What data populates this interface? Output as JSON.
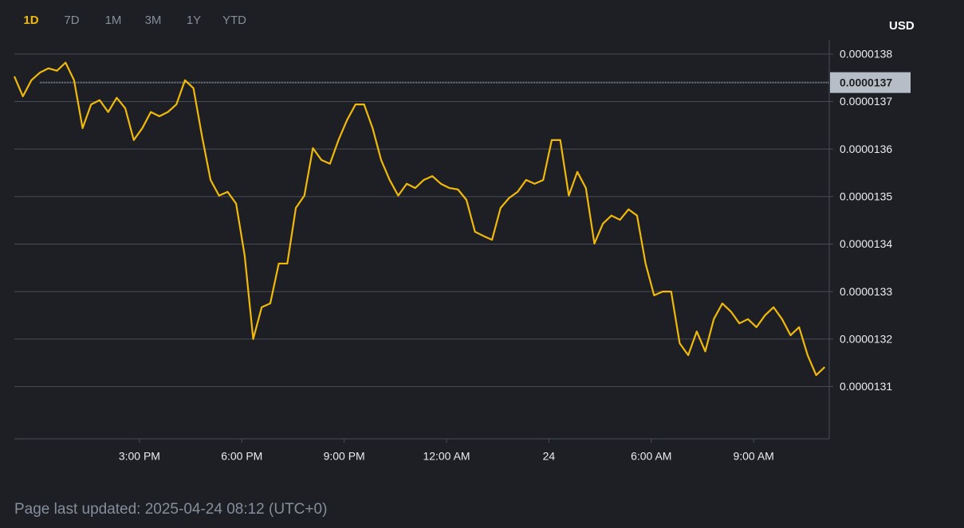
{
  "tabs": [
    "1D",
    "7D",
    "1M",
    "3M",
    "1Y",
    "YTD"
  ],
  "active_tab": "1D",
  "footer": "Page last updated: 2025-04-24 08:12 (UTC+0)",
  "chart_data": {
    "type": "line",
    "y_axis_label": "USD",
    "color": "#f0b90b",
    "grid": true,
    "x": [
      "11:20",
      "11:35",
      "11:50",
      "12:05",
      "12:20",
      "12:35",
      "12:50",
      "13:05",
      "13:20",
      "13:35",
      "13:50",
      "14:05",
      "14:20",
      "14:35",
      "14:50",
      "15:05",
      "15:20",
      "15:35",
      "15:50",
      "16:05",
      "16:20",
      "16:35",
      "16:50",
      "17:05",
      "17:20",
      "17:35",
      "17:50",
      "18:05",
      "18:20",
      "18:35",
      "18:50",
      "19:05",
      "19:20",
      "19:35",
      "19:50",
      "20:05",
      "20:20",
      "20:35",
      "20:50",
      "21:05",
      "21:20",
      "21:35",
      "21:50",
      "22:05",
      "22:20",
      "22:35",
      "22:50",
      "23:05",
      "23:20",
      "23:35",
      "23:50",
      "00:05",
      "00:20",
      "00:35",
      "00:50",
      "01:05",
      "01:20",
      "01:35",
      "01:50",
      "02:05",
      "02:20",
      "02:35",
      "02:50",
      "03:05",
      "03:20",
      "03:35",
      "03:50",
      "04:05",
      "04:20",
      "04:35",
      "04:50",
      "05:05",
      "05:20",
      "05:35",
      "05:50",
      "06:05",
      "06:20",
      "06:35",
      "06:50",
      "07:05",
      "07:20",
      "07:35",
      "07:50",
      "08:05",
      "08:20",
      "08:35",
      "08:50",
      "09:05",
      "09:20",
      "09:35",
      "09:50",
      "10:05",
      "10:20",
      "10:35",
      "10:50",
      "11:05"
    ],
    "values": [
      1.3753e-05,
      1.3711e-05,
      1.3745e-05,
      1.3761e-05,
      1.377e-05,
      1.3765e-05,
      1.3782e-05,
      1.3745e-05,
      1.3644e-05,
      1.3694e-05,
      1.3703e-05,
      1.3678e-05,
      1.3708e-05,
      1.3686e-05,
      1.3619e-05,
      1.3644e-05,
      1.3678e-05,
      1.3669e-05,
      1.3678e-05,
      1.3694e-05,
      1.3745e-05,
      1.3728e-05,
      1.3627e-05,
      1.3535e-05,
      1.3502e-05,
      1.351e-05,
      1.3485e-05,
      1.3376e-05,
      1.32e-05,
      1.3267e-05,
      1.3275e-05,
      1.3359e-05,
      1.3359e-05,
      1.3476e-05,
      1.3502e-05,
      1.3602e-05,
      1.3577e-05,
      1.3569e-05,
      1.3619e-05,
      1.3661e-05,
      1.3694e-05,
      1.3694e-05,
      1.3644e-05,
      1.3577e-05,
      1.3535e-05,
      1.3502e-05,
      1.3527e-05,
      1.3518e-05,
      1.3535e-05,
      1.3543e-05,
      1.3527e-05,
      1.3518e-05,
      1.3515e-05,
      1.3493e-05,
      1.3426e-05,
      1.3417e-05,
      1.3409e-05,
      1.3476e-05,
      1.3497e-05,
      1.351e-05,
      1.3535e-05,
      1.3527e-05,
      1.3535e-05,
      1.3619e-05,
      1.3619e-05,
      1.3502e-05,
      1.3552e-05,
      1.3518e-05,
      1.3401e-05,
      1.3443e-05,
      1.346e-05,
      1.3451e-05,
      1.3473e-05,
      1.346e-05,
      1.3359e-05,
      1.3292e-05,
      1.33e-05,
      1.33e-05,
      1.3191e-05,
      1.3166e-05,
      1.3216e-05,
      1.3174e-05,
      1.3242e-05,
      1.3275e-05,
      1.3258e-05,
      1.3233e-05,
      1.3242e-05,
      1.3225e-05,
      1.325e-05,
      1.3267e-05,
      1.3242e-05,
      1.3208e-05,
      1.3225e-05,
      1.3166e-05,
      1.3124e-05,
      1.3141e-05
    ],
    "xlim": [
      "11:20",
      "11:13"
    ],
    "xticks": [
      {
        "value": "15:00",
        "label": "3:00 PM"
      },
      {
        "value": "18:00",
        "label": "6:00 PM"
      },
      {
        "value": "21:00",
        "label": "9:00 PM"
      },
      {
        "value": "00:00",
        "label": "12:00 AM"
      },
      {
        "value": "03:00",
        "label": "24"
      },
      {
        "value": "06:00",
        "label": "6:00 AM"
      },
      {
        "value": "09:00",
        "label": "9:00 AM"
      }
    ],
    "ylim": [
      1.299e-05,
      1.383e-05
    ],
    "yticks": [
      1.31e-05,
      1.32e-05,
      1.33e-05,
      1.34e-05,
      1.35e-05,
      1.36e-05,
      1.37e-05,
      1.38e-05
    ],
    "last_price": {
      "value": 1.374e-05,
      "label": "0.0000137"
    }
  }
}
